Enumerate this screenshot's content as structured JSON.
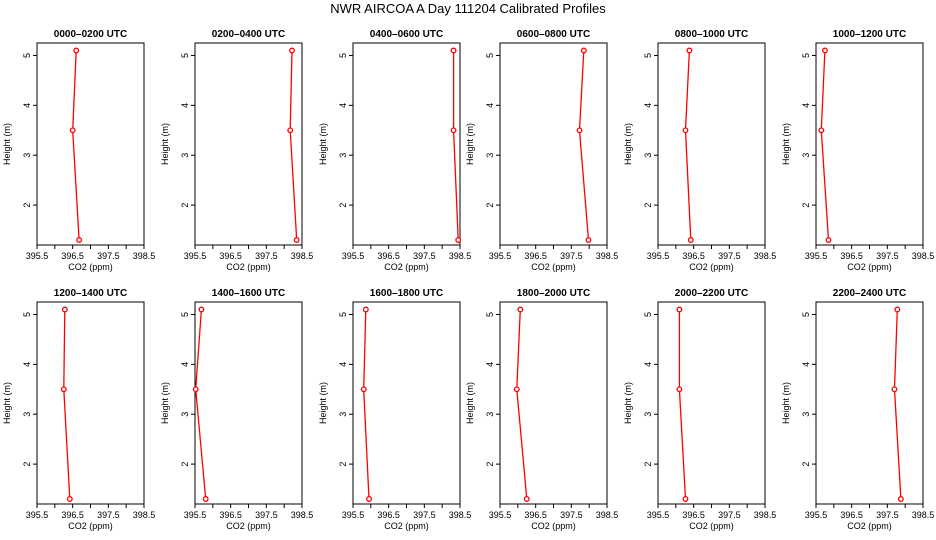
{
  "figure_title": "NWR AIRCOA A  Day 111204  Calibrated Profiles",
  "colors": {
    "profile_line": "#ff0000",
    "axes": "#000000"
  },
  "chart_data": [
    {
      "type": "line",
      "title": "0000–0200 UTC",
      "xlabel": "CO2 (ppm)",
      "ylabel": "Height (m)",
      "xlim": [
        395.5,
        398.5
      ],
      "ylim": [
        1.2,
        5.25
      ],
      "xticks": [
        "395.5",
        "396.5",
        "397.5",
        "398.5"
      ],
      "yticks": [
        "2",
        "3",
        "4",
        "5"
      ],
      "series": [
        {
          "x": [
            396.68,
            396.5,
            396.6
          ],
          "y": [
            1.3,
            3.5,
            5.1
          ]
        }
      ]
    },
    {
      "type": "line",
      "title": "0200–0400 UTC",
      "xlabel": "CO2 (ppm)",
      "ylabel": "Height (m)",
      "xlim": [
        395.5,
        398.5
      ],
      "ylim": [
        1.2,
        5.25
      ],
      "xticks": [
        "395.5",
        "396.5",
        "397.5",
        "398.5"
      ],
      "yticks": [
        "2",
        "3",
        "4",
        "5"
      ],
      "series": [
        {
          "x": [
            398.35,
            398.17,
            398.22
          ],
          "y": [
            1.3,
            3.5,
            5.1
          ]
        }
      ]
    },
    {
      "type": "line",
      "title": "0400–0600 UTC",
      "xlabel": "CO2 (ppm)",
      "ylabel": "Height (m)",
      "xlim": [
        395.5,
        398.5
      ],
      "ylim": [
        1.2,
        5.25
      ],
      "xticks": [
        "395.5",
        "396.5",
        "397.5",
        "398.5"
      ],
      "yticks": [
        "2",
        "3",
        "4",
        "5"
      ],
      "series": [
        {
          "x": [
            398.45,
            398.32,
            398.32
          ],
          "y": [
            1.3,
            3.5,
            5.1
          ]
        }
      ]
    },
    {
      "type": "line",
      "title": "0600–0800 UTC",
      "xlabel": "CO2 (ppm)",
      "ylabel": "Height (m)",
      "xlim": [
        395.5,
        398.5
      ],
      "ylim": [
        1.2,
        5.25
      ],
      "xticks": [
        "395.5",
        "396.5",
        "397.5",
        "398.5"
      ],
      "yticks": [
        "2",
        "3",
        "4",
        "5"
      ],
      "series": [
        {
          "x": [
            397.98,
            397.73,
            397.85
          ],
          "y": [
            1.3,
            3.5,
            5.1
          ]
        }
      ]
    },
    {
      "type": "line",
      "title": "0800–1000 UTC",
      "xlabel": "CO2 (ppm)",
      "ylabel": "Height (m)",
      "xlim": [
        395.5,
        398.5
      ],
      "ylim": [
        1.2,
        5.25
      ],
      "xticks": [
        "395.5",
        "396.5",
        "397.5",
        "398.5"
      ],
      "yticks": [
        "2",
        "3",
        "4",
        "5"
      ],
      "series": [
        {
          "x": [
            396.42,
            396.27,
            396.38
          ],
          "y": [
            1.3,
            3.5,
            5.1
          ]
        }
      ]
    },
    {
      "type": "line",
      "title": "1000–1200 UTC",
      "xlabel": "CO2 (ppm)",
      "ylabel": "Height (m)",
      "xlim": [
        395.5,
        398.5
      ],
      "ylim": [
        1.2,
        5.25
      ],
      "xticks": [
        "395.5",
        "396.5",
        "397.5",
        "398.5"
      ],
      "yticks": [
        "2",
        "3",
        "4",
        "5"
      ],
      "series": [
        {
          "x": [
            395.85,
            395.65,
            395.75
          ],
          "y": [
            1.3,
            3.5,
            5.1
          ]
        }
      ]
    },
    {
      "type": "line",
      "title": "1200–1400 UTC",
      "xlabel": "CO2 (ppm)",
      "ylabel": "Height (m)",
      "xlim": [
        395.5,
        398.5
      ],
      "ylim": [
        1.2,
        5.25
      ],
      "xticks": [
        "395.5",
        "396.5",
        "397.5",
        "398.5"
      ],
      "yticks": [
        "2",
        "3",
        "4",
        "5"
      ],
      "series": [
        {
          "x": [
            396.42,
            396.25,
            396.28
          ],
          "y": [
            1.3,
            3.5,
            5.1
          ]
        }
      ]
    },
    {
      "type": "line",
      "title": "1400–1600 UTC",
      "xlabel": "CO2 (ppm)",
      "ylabel": "Height (m)",
      "xlim": [
        395.5,
        398.5
      ],
      "ylim": [
        1.2,
        5.25
      ],
      "xticks": [
        "395.5",
        "396.5",
        "397.5",
        "398.5"
      ],
      "yticks": [
        "2",
        "3",
        "4",
        "5"
      ],
      "series": [
        {
          "x": [
            395.8,
            395.52,
            395.68
          ],
          "y": [
            1.3,
            3.5,
            5.1
          ]
        }
      ]
    },
    {
      "type": "line",
      "title": "1600–1800 UTC",
      "xlabel": "CO2 (ppm)",
      "ylabel": "Height (m)",
      "xlim": [
        395.5,
        398.5
      ],
      "ylim": [
        1.2,
        5.25
      ],
      "xticks": [
        "395.5",
        "396.5",
        "397.5",
        "398.5"
      ],
      "yticks": [
        "2",
        "3",
        "4",
        "5"
      ],
      "series": [
        {
          "x": [
            395.95,
            395.8,
            395.86
          ],
          "y": [
            1.3,
            3.5,
            5.1
          ]
        }
      ]
    },
    {
      "type": "line",
      "title": "1800–2000 UTC",
      "xlabel": "CO2 (ppm)",
      "ylabel": "Height (m)",
      "xlim": [
        395.5,
        398.5
      ],
      "ylim": [
        1.2,
        5.25
      ],
      "xticks": [
        "395.5",
        "396.5",
        "397.5",
        "398.5"
      ],
      "yticks": [
        "2",
        "3",
        "4",
        "5"
      ],
      "series": [
        {
          "x": [
            396.25,
            395.97,
            396.07
          ],
          "y": [
            1.3,
            3.5,
            5.1
          ]
        }
      ]
    },
    {
      "type": "line",
      "title": "2000–2200 UTC",
      "xlabel": "CO2 (ppm)",
      "ylabel": "Height (m)",
      "xlim": [
        395.5,
        398.5
      ],
      "ylim": [
        1.2,
        5.25
      ],
      "xticks": [
        "395.5",
        "396.5",
        "397.5",
        "398.5"
      ],
      "yticks": [
        "2",
        "3",
        "4",
        "5"
      ],
      "series": [
        {
          "x": [
            396.27,
            396.1,
            396.1
          ],
          "y": [
            1.3,
            3.5,
            5.1
          ]
        }
      ]
    },
    {
      "type": "line",
      "title": "2200–2400 UTC",
      "xlabel": "CO2 (ppm)",
      "ylabel": "Height (m)",
      "xlim": [
        395.5,
        398.5
      ],
      "ylim": [
        1.2,
        5.25
      ],
      "xticks": [
        "395.5",
        "396.5",
        "397.5",
        "398.5"
      ],
      "yticks": [
        "2",
        "3",
        "4",
        "5"
      ],
      "series": [
        {
          "x": [
            397.88,
            397.7,
            397.78
          ],
          "y": [
            1.3,
            3.5,
            5.1
          ]
        }
      ]
    }
  ]
}
